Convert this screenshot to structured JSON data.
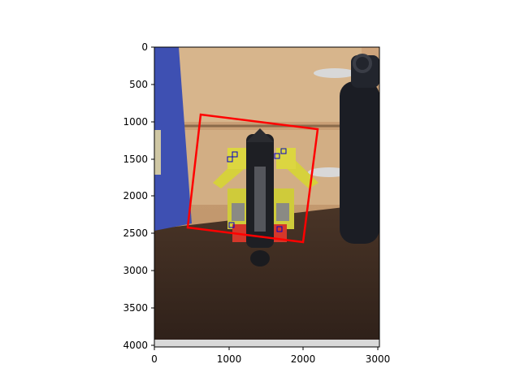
{
  "figure": {
    "x_ticks": [
      "0",
      "1000",
      "2000",
      "3000"
    ],
    "y_ticks": [
      "0",
      "500",
      "1000",
      "1500",
      "2000",
      "2500",
      "3000",
      "3500",
      "4000"
    ]
  },
  "image": {
    "description_colors": {
      "wall": "#c9a27a",
      "drawer": "#d6b48c",
      "table": "#3b2a20",
      "blue_box": "#3d4fb0",
      "bottle": "#1a1c22",
      "toy_yellow": "#d8d23a",
      "toy_red": "#d23a2a"
    }
  },
  "overlay": {
    "polygon_color": "#ff0000",
    "keypoint_color": "#0000cc"
  }
}
